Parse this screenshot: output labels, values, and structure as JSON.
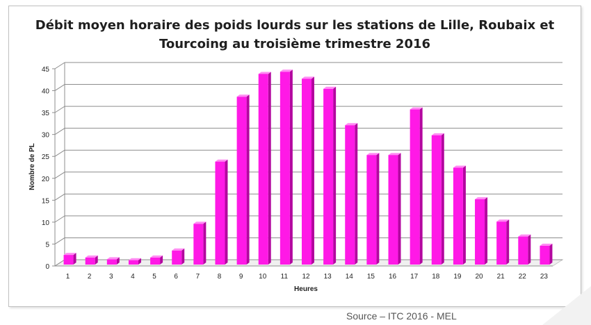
{
  "chart_data": {
    "type": "bar",
    "title_line1": "Débit moyen horaire des poids lourds sur les stations de Lille, Roubaix et",
    "title_line2": "Tourcoing  au troisième  trimestre 2016",
    "xlabel": "Heures",
    "ylabel": "Nombre de PL",
    "categories": [
      "1",
      "2",
      "3",
      "4",
      "5",
      "6",
      "7",
      "8",
      "9",
      "10",
      "11",
      "12",
      "13",
      "14",
      "15",
      "16",
      "17",
      "18",
      "19",
      "20",
      "21",
      "22",
      "23"
    ],
    "values": [
      2.2,
      1.6,
      1.2,
      1.0,
      1.6,
      3.2,
      9.3,
      23.5,
      38.3,
      43.5,
      44.0,
      42.4,
      40.1,
      31.8,
      25.0,
      25.0,
      35.4,
      29.5,
      22.1,
      14.9,
      9.8,
      6.4,
      4.3
    ],
    "yticks": [
      "0",
      "5",
      "10",
      "15",
      "20",
      "25",
      "30",
      "35",
      "40",
      "45"
    ],
    "ylim": [
      0,
      45
    ],
    "grid": true,
    "legend": "none",
    "colors": {
      "bar_front": "#ff19e6",
      "bar_top": "#ff8cf3",
      "bar_side": "#b3079f",
      "gridline": "#8c8c8c",
      "floor": "#c8c8c8"
    }
  },
  "source": "Source – ITC 2016 - MEL"
}
